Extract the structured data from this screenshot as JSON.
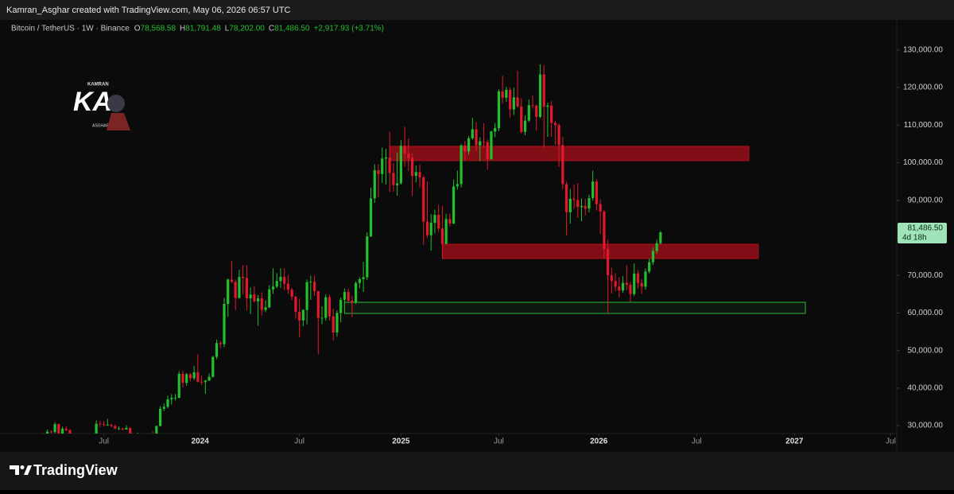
{
  "credit": "Kamran_Asghar created with TradingView.com, May 06, 2026 06:57 UTC",
  "footer": "TradingView",
  "watermark": {
    "top": "KAMRAN",
    "main": "KA",
    "bottom": "ASGHAR"
  },
  "chart_data": {
    "type": "candlestick",
    "title": "Bitcoin / TetherUS · 1W · Binance",
    "ohlc_labels": [
      "O",
      "H",
      "L",
      "C"
    ],
    "ohlc_values": [
      "78,568.58",
      "81,791.48",
      "78,202.00",
      "81,486.50"
    ],
    "change": "+2,917.93 (+3.71%)",
    "last_price": {
      "price": "81,486.50",
      "countdown": "4d 18h"
    },
    "up_color": "#22c02c",
    "down_color": "#e2182b",
    "grid": false,
    "ylim": [
      27900,
      137600
    ],
    "yticks": [
      {
        "value": 30000,
        "label": "30,000.00"
      },
      {
        "value": 40000,
        "label": "40,000.00"
      },
      {
        "value": 50000,
        "label": "50,000.00"
      },
      {
        "value": 60000,
        "label": "60,000.00"
      },
      {
        "value": 70000,
        "label": "70,000.00"
      },
      {
        "value": 80000,
        "label": "80,000.00"
      },
      {
        "value": 90000,
        "label": "90,000.00"
      },
      {
        "value": 100000,
        "label": "100,000.00"
      },
      {
        "value": 110000,
        "label": "110,000.00"
      },
      {
        "value": 120000,
        "label": "120,000.00"
      },
      {
        "value": 130000,
        "label": "130,000.00"
      }
    ],
    "xlim": [
      -11.6,
      226.8
    ],
    "xticks": [
      {
        "value": 16,
        "label": "Jul"
      },
      {
        "value": 41.6,
        "label": "2024"
      },
      {
        "value": 68,
        "label": "Jul"
      },
      {
        "value": 95,
        "label": "2025"
      },
      {
        "value": 121,
        "label": "Jul"
      },
      {
        "value": 147.6,
        "label": "2026"
      },
      {
        "value": 173.6,
        "label": "Jul"
      },
      {
        "value": 199.6,
        "label": "2027"
      },
      {
        "value": 225.2,
        "label": "Jul"
      }
    ],
    "zones": [
      {
        "top": 104364,
        "bottom": 100551,
        "start": 92,
        "end": 187.5,
        "color": "#b3101c"
      },
      {
        "top": 78305,
        "bottom": 74492,
        "start": 106,
        "end": 190,
        "color": "#b3101c"
      },
      {
        "top": 62839,
        "bottom": 59873,
        "start": 80,
        "end": 202.5,
        "color": "#2fb83a"
      }
    ],
    "ohlc": [
      [
        27000,
        28000,
        26600,
        27500
      ],
      [
        27500,
        29000,
        27000,
        28400
      ],
      [
        28400,
        28800,
        27700,
        28300
      ],
      [
        28300,
        30900,
        28000,
        30400
      ],
      [
        30400,
        30500,
        27200,
        27600
      ],
      [
        27600,
        29700,
        27300,
        29200
      ],
      [
        29200,
        29800,
        28500,
        28800
      ],
      [
        28800,
        29100,
        26700,
        26900
      ],
      [
        26900,
        27600,
        26400,
        26900
      ],
      [
        26900,
        27400,
        26500,
        26800
      ],
      [
        26800,
        27500,
        25800,
        27200
      ],
      [
        27200,
        27300,
        25400,
        25800
      ],
      [
        25800,
        26300,
        24800,
        25900
      ],
      [
        25900,
        26800,
        25600,
        26300
      ],
      [
        26300,
        31400,
        26200,
        30500
      ],
      [
        30500,
        31300,
        29600,
        30400
      ],
      [
        30400,
        31200,
        29800,
        30200
      ],
      [
        30200,
        31800,
        30000,
        30200
      ],
      [
        30200,
        30500,
        29600,
        29900
      ],
      [
        29900,
        30300,
        29100,
        29200
      ],
      [
        29200,
        29800,
        28900,
        29200
      ],
      [
        29200,
        29500,
        28700,
        29000
      ],
      [
        29000,
        30100,
        28900,
        29400
      ],
      [
        29400,
        29500,
        25200,
        26100
      ],
      [
        26100,
        26300,
        25700,
        26000
      ],
      [
        26000,
        28100,
        25800,
        26100
      ],
      [
        26100,
        26400,
        24900,
        25900
      ],
      [
        25900,
        26800,
        25600,
        26500
      ],
      [
        26500,
        27400,
        26300,
        27000
      ],
      [
        27000,
        28500,
        26600,
        26900
      ],
      [
        26900,
        30000,
        26600,
        29900
      ],
      [
        29900,
        35200,
        29800,
        34500
      ],
      [
        34500,
        35900,
        33900,
        35000
      ],
      [
        35000,
        38000,
        34600,
        37000
      ],
      [
        37000,
        38400,
        35600,
        37400
      ],
      [
        37400,
        38400,
        36700,
        37400
      ],
      [
        37400,
        44500,
        37300,
        43800
      ],
      [
        43800,
        44600,
        40200,
        41400
      ],
      [
        41400,
        44000,
        40600,
        43700
      ],
      [
        43700,
        44000,
        41800,
        42600
      ],
      [
        42600,
        45900,
        42100,
        44200
      ],
      [
        44200,
        49000,
        41500,
        41700
      ],
      [
        41700,
        43300,
        40800,
        41600
      ],
      [
        41600,
        42200,
        38500,
        42000
      ],
      [
        42000,
        43900,
        41900,
        43000
      ],
      [
        43000,
        48600,
        42800,
        48300
      ],
      [
        48300,
        52900,
        47700,
        52000
      ],
      [
        52000,
        52600,
        50600,
        51700
      ],
      [
        51700,
        64000,
        50900,
        62400
      ],
      [
        62400,
        69200,
        59000,
        68900
      ],
      [
        68900,
        73800,
        68000,
        68300
      ],
      [
        68300,
        68900,
        60700,
        64000
      ],
      [
        64000,
        71500,
        63800,
        69600
      ],
      [
        69600,
        72800,
        65000,
        69300
      ],
      [
        69300,
        72700,
        60700,
        63900
      ],
      [
        63900,
        66800,
        59700,
        64900
      ],
      [
        64900,
        67200,
        62800,
        63100
      ],
      [
        63100,
        64800,
        56600,
        63900
      ],
      [
        63900,
        65500,
        59300,
        60800
      ],
      [
        60800,
        63400,
        60200,
        61500
      ],
      [
        61500,
        67400,
        61300,
        66300
      ],
      [
        66300,
        71900,
        65100,
        67000
      ],
      [
        67000,
        70600,
        66600,
        68500
      ],
      [
        68500,
        71900,
        66700,
        69600
      ],
      [
        69600,
        71900,
        66100,
        67800
      ],
      [
        67800,
        70100,
        65100,
        66200
      ],
      [
        66200,
        66700,
        63400,
        64300
      ],
      [
        64300,
        64600,
        58500,
        60300
      ],
      [
        60300,
        63800,
        53500,
        58000
      ],
      [
        58000,
        61000,
        56500,
        60800
      ],
      [
        60800,
        68900,
        57000,
        68200
      ],
      [
        68200,
        69900,
        63500,
        68300
      ],
      [
        68300,
        70000,
        64500,
        65800
      ],
      [
        65800,
        65900,
        49000,
        58700
      ],
      [
        58700,
        61800,
        57000,
        58700
      ],
      [
        58700,
        65000,
        57900,
        64200
      ],
      [
        64200,
        64900,
        58000,
        59100
      ],
      [
        59100,
        61200,
        52600,
        54800
      ],
      [
        54800,
        60700,
        53700,
        60000
      ],
      [
        60000,
        64100,
        57500,
        63500
      ],
      [
        63500,
        66500,
        62300,
        65600
      ],
      [
        65600,
        66500,
        62800,
        63300
      ],
      [
        63300,
        64500,
        58900,
        62900
      ],
      [
        62900,
        68400,
        62400,
        68000
      ],
      [
        68000,
        69500,
        66600,
        69000
      ],
      [
        69000,
        73600,
        65600,
        69500
      ],
      [
        69500,
        81500,
        68800,
        80400
      ],
      [
        80400,
        93400,
        80200,
        90500
      ],
      [
        90500,
        99600,
        89300,
        98000
      ],
      [
        98000,
        99600,
        90800,
        97000
      ],
      [
        97000,
        104000,
        94600,
        101100
      ],
      [
        101100,
        103700,
        94200,
        101400
      ],
      [
        101400,
        108300,
        92200,
        97300
      ],
      [
        97300,
        99900,
        92300,
        94000
      ],
      [
        94000,
        102700,
        91200,
        94500
      ],
      [
        94500,
        106000,
        94200,
        104500
      ],
      [
        104500,
        109600,
        99000,
        102400
      ],
      [
        102400,
        106400,
        97800,
        101300
      ],
      [
        101300,
        102500,
        91200,
        96500
      ],
      [
        96500,
        99200,
        94800,
        97500
      ],
      [
        97500,
        99500,
        93400,
        96100
      ],
      [
        96100,
        96600,
        78200,
        84300
      ],
      [
        84300,
        95000,
        80000,
        80700
      ],
      [
        80700,
        86300,
        76600,
        84000
      ],
      [
        84000,
        87500,
        81200,
        86100
      ],
      [
        86100,
        88800,
        81600,
        82500
      ],
      [
        82500,
        88500,
        74500,
        78400
      ],
      [
        78400,
        86400,
        78300,
        85000
      ],
      [
        85000,
        86400,
        83100,
        83800
      ],
      [
        83800,
        95500,
        83700,
        93700
      ],
      [
        93700,
        97900,
        92800,
        94300
      ],
      [
        94300,
        104900,
        93400,
        104600
      ],
      [
        104600,
        105800,
        100700,
        103000
      ],
      [
        103000,
        107100,
        102100,
        106500
      ],
      [
        106500,
        111900,
        106100,
        108900
      ],
      [
        108900,
        110800,
        103100,
        104600
      ],
      [
        104600,
        106800,
        100400,
        105700
      ],
      [
        105700,
        110500,
        104000,
        105500
      ],
      [
        105500,
        106200,
        98200,
        100900
      ],
      [
        100900,
        108500,
        100900,
        108300
      ],
      [
        108300,
        110600,
        106800,
        109200
      ],
      [
        109200,
        119500,
        108400,
        119000
      ],
      [
        119000,
        123200,
        115800,
        117300
      ],
      [
        117300,
        120200,
        116200,
        119400
      ],
      [
        119400,
        120000,
        112000,
        114200
      ],
      [
        114200,
        120000,
        112700,
        117400
      ],
      [
        117400,
        124500,
        114700,
        115000
      ],
      [
        115000,
        117200,
        107800,
        108200
      ],
      [
        108200,
        112600,
        107300,
        111200
      ],
      [
        111200,
        116800,
        110800,
        115300
      ],
      [
        115300,
        117900,
        114400,
        115200
      ],
      [
        115200,
        115500,
        108600,
        112200
      ],
      [
        112200,
        126200,
        111900,
        123500
      ],
      [
        123500,
        126000,
        104000,
        114900
      ],
      [
        114900,
        116000,
        106900,
        115200
      ],
      [
        115200,
        116400,
        107000,
        110600
      ],
      [
        110600,
        111200,
        104800,
        110000
      ],
      [
        110000,
        110500,
        98900,
        104700
      ],
      [
        104700,
        106800,
        93000,
        94300
      ],
      [
        94300,
        95000,
        80600,
        86800
      ],
      [
        86800,
        93000,
        83800,
        90400
      ],
      [
        90400,
        94200,
        87700,
        90100
      ],
      [
        90100,
        94600,
        85300,
        88200
      ],
      [
        88200,
        90500,
        84400,
        88500
      ],
      [
        88500,
        90400,
        86000,
        87800
      ],
      [
        87800,
        91500,
        86800,
        90600
      ],
      [
        90600,
        97900,
        89900,
        95000
      ],
      [
        95000,
        95600,
        87300,
        89000
      ],
      [
        89000,
        90200,
        81000,
        87000
      ],
      [
        87000,
        87400,
        74500,
        77000
      ],
      [
        77000,
        79500,
        60000,
        70000
      ],
      [
        70000,
        72000,
        65200,
        68500
      ],
      [
        68500,
        70600,
        65800,
        67000
      ],
      [
        67000,
        69500,
        64200,
        66000
      ],
      [
        66000,
        69800,
        65400,
        68000
      ],
      [
        68000,
        72800,
        66100,
        67500
      ],
      [
        67500,
        68300,
        62900,
        65000
      ],
      [
        65000,
        73200,
        64500,
        70500
      ],
      [
        70500,
        71500,
        66500,
        68000
      ],
      [
        68000,
        69000,
        65100,
        67000
      ],
      [
        67000,
        71800,
        66200,
        71000
      ],
      [
        71000,
        74500,
        70500,
        73500
      ],
      [
        73500,
        77400,
        72800,
        76500
      ],
      [
        76500,
        79500,
        75800,
        78568.58
      ],
      [
        78568.58,
        81791.48,
        78202,
        81486.5
      ]
    ]
  }
}
